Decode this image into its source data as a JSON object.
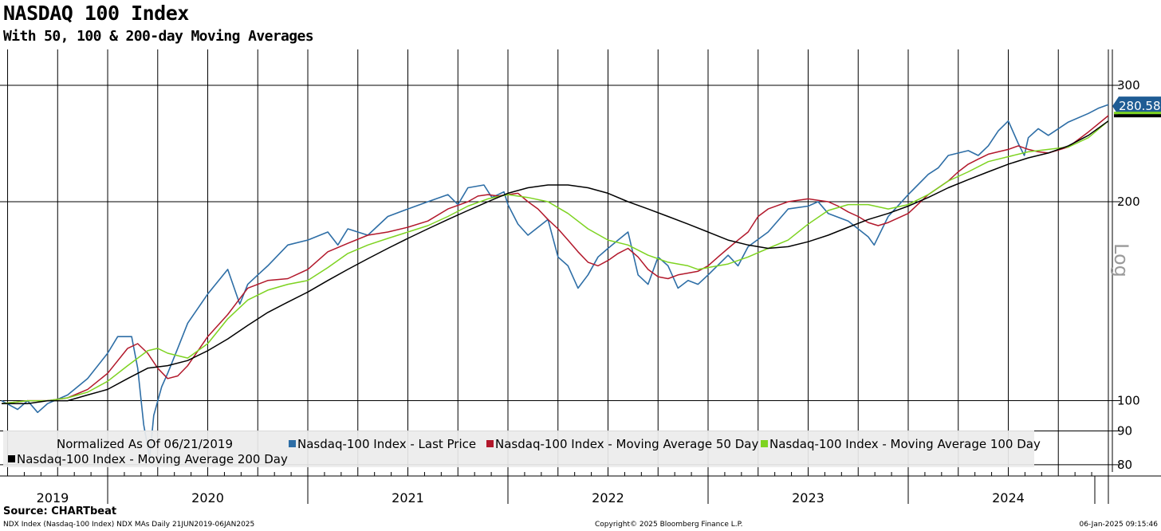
{
  "title": "NASDAQ 100 Index",
  "subtitle": "With 50, 100 & 200-day Moving Averages",
  "source": "Source: CHARTbeat",
  "footer": {
    "left": "NDX Index (Nasdaq-100 Index) NDX MAs  Daily 21JUN2019-06JAN2025",
    "center": "Copyright© 2025 Bloomberg Finance L.P.",
    "right": "06-Jan-2025 09:15:46"
  },
  "legend": {
    "normalized": "Normalized As Of 06/21/2019",
    "items": [
      {
        "label": "Nasdaq-100 Index - Last Price",
        "color": "#2e6ea6"
      },
      {
        "label": "Nasdaq-100 Index - Moving Average 50 Day",
        "color": "#b2182b"
      },
      {
        "label": "Nasdaq-100 Index - Moving Average 100 Day",
        "color": "#7ed321"
      },
      {
        "label": "Nasdaq-100 Index - Moving Average 200 Day",
        "color": "#000000"
      }
    ]
  },
  "axis": {
    "scale_label": "Log",
    "last_value_label": "280.58"
  },
  "chart_data": {
    "type": "line",
    "y_scale": "log",
    "ylim": [
      78,
      340
    ],
    "y_ticks": [
      80,
      90,
      100,
      200,
      300
    ],
    "xlim": [
      2019.47,
      2025.02
    ],
    "x_tick_labels": [
      "2019",
      "2020",
      "2021",
      "2022",
      "2023",
      "2024"
    ],
    "x_label_positions": [
      2019.22,
      2020.5,
      2021.5,
      2022.5,
      2023.5,
      2024.5
    ],
    "grid": true,
    "legend_position": "bottom",
    "last_value": 280.58,
    "series": [
      {
        "name": "Nasdaq-100 Index - Last Price",
        "color": "#2e6ea6",
        "x": [
          2019.47,
          2019.55,
          2019.6,
          2019.65,
          2019.7,
          2019.8,
          2019.9,
          2020.0,
          2020.05,
          2020.12,
          2020.15,
          2020.18,
          2020.21,
          2020.23,
          2020.27,
          2020.3,
          2020.35,
          2020.4,
          2020.5,
          2020.6,
          2020.66,
          2020.7,
          2020.75,
          2020.8,
          2020.9,
          2021.0,
          2021.1,
          2021.15,
          2021.2,
          2021.3,
          2021.4,
          2021.5,
          2021.6,
          2021.7,
          2021.75,
          2021.8,
          2021.88,
          2021.92,
          2021.98,
          2022.0,
          2022.05,
          2022.1,
          2022.2,
          2022.25,
          2022.3,
          2022.35,
          2022.4,
          2022.45,
          2022.5,
          2022.55,
          2022.6,
          2022.65,
          2022.7,
          2022.75,
          2022.8,
          2022.85,
          2022.9,
          2022.95,
          2023.0,
          2023.1,
          2023.15,
          2023.2,
          2023.3,
          2023.4,
          2023.5,
          2023.55,
          2023.6,
          2023.7,
          2023.8,
          2023.83,
          2023.9,
          2024.0,
          2024.1,
          2024.15,
          2024.2,
          2024.3,
          2024.35,
          2024.4,
          2024.45,
          2024.5,
          2024.55,
          2024.58,
          2024.6,
          2024.65,
          2024.7,
          2024.8,
          2024.9,
          2024.95,
          2025.0
        ],
        "values": [
          100,
          97,
          100,
          96,
          99,
          102,
          108,
          118,
          125,
          125,
          112,
          92,
          82,
          95,
          105,
          110,
          120,
          131,
          145,
          158,
          140,
          150,
          155,
          160,
          172,
          175,
          180,
          172,
          182,
          178,
          190,
          195,
          200,
          205,
          198,
          210,
          212,
          203,
          207,
          198,
          185,
          178,
          188,
          165,
          160,
          148,
          155,
          165,
          170,
          175,
          180,
          155,
          150,
          165,
          160,
          148,
          152,
          150,
          155,
          166,
          160,
          171,
          180,
          195,
          197,
          200,
          192,
          187,
          177,
          172,
          190,
          205,
          220,
          225,
          235,
          239,
          235,
          243,
          256,
          265,
          245,
          235,
          250,
          258,
          252,
          264,
          272,
          277,
          280.58
        ]
      },
      {
        "name": "Nasdaq-100 Index - Moving Average 50 Day",
        "color": "#b2182b",
        "x": [
          2019.47,
          2019.6,
          2019.7,
          2019.8,
          2019.9,
          2020.0,
          2020.1,
          2020.15,
          2020.2,
          2020.25,
          2020.3,
          2020.35,
          2020.4,
          2020.5,
          2020.6,
          2020.7,
          2020.8,
          2020.9,
          2021.0,
          2021.1,
          2021.2,
          2021.3,
          2021.4,
          2021.5,
          2021.6,
          2021.7,
          2021.8,
          2021.85,
          2021.9,
          2021.95,
          2022.0,
          2022.05,
          2022.1,
          2022.15,
          2022.2,
          2022.25,
          2022.3,
          2022.35,
          2022.4,
          2022.45,
          2022.5,
          2022.55,
          2022.6,
          2022.65,
          2022.7,
          2022.75,
          2022.8,
          2022.85,
          2022.9,
          2022.95,
          2023.0,
          2023.05,
          2023.1,
          2023.15,
          2023.2,
          2023.25,
          2023.3,
          2023.4,
          2023.5,
          2023.55,
          2023.6,
          2023.65,
          2023.7,
          2023.75,
          2023.8,
          2023.85,
          2023.9,
          2024.0,
          2024.1,
          2024.2,
          2024.25,
          2024.3,
          2024.35,
          2024.4,
          2024.45,
          2024.5,
          2024.55,
          2024.6,
          2024.65,
          2024.7,
          2024.8,
          2024.9,
          2025.0
        ],
        "values": [
          99,
          100,
          100,
          101,
          104,
          110,
          120,
          122,
          118,
          112,
          108,
          109,
          113,
          125,
          135,
          148,
          152,
          153,
          158,
          168,
          173,
          178,
          180,
          183,
          187,
          195,
          200,
          204,
          205,
          204,
          205,
          206,
          200,
          195,
          188,
          182,
          175,
          168,
          162,
          160,
          163,
          167,
          170,
          165,
          158,
          154,
          153,
          155,
          156,
          157,
          160,
          165,
          170,
          175,
          180,
          190,
          195,
          200,
          202,
          201,
          200,
          197,
          193,
          190,
          186,
          184,
          186,
          192,
          205,
          215,
          222,
          228,
          232,
          236,
          238,
          240,
          243,
          240,
          238,
          237,
          242,
          255,
          270
        ]
      },
      {
        "name": "Nasdaq-100 Index - Moving Average 100 Day",
        "color": "#7ed321",
        "x": [
          2019.47,
          2019.6,
          2019.7,
          2019.8,
          2019.9,
          2020.0,
          2020.1,
          2020.2,
          2020.25,
          2020.3,
          2020.4,
          2020.5,
          2020.6,
          2020.7,
          2020.8,
          2020.9,
          2021.0,
          2021.1,
          2021.2,
          2021.3,
          2021.4,
          2021.5,
          2021.6,
          2021.7,
          2021.8,
          2021.9,
          2022.0,
          2022.1,
          2022.2,
          2022.3,
          2022.4,
          2022.5,
          2022.6,
          2022.65,
          2022.7,
          2022.75,
          2022.8,
          2022.85,
          2022.9,
          2022.95,
          2023.0,
          2023.1,
          2023.2,
          2023.3,
          2023.4,
          2023.5,
          2023.6,
          2023.7,
          2023.8,
          2023.9,
          2024.0,
          2024.1,
          2024.2,
          2024.3,
          2024.4,
          2024.5,
          2024.6,
          2024.7,
          2024.8,
          2024.9,
          2025.0
        ],
        "values": [
          99,
          100,
          100,
          101,
          103,
          107,
          113,
          119,
          120,
          118,
          116,
          122,
          133,
          142,
          147,
          150,
          152,
          159,
          167,
          172,
          176,
          180,
          184,
          190,
          197,
          202,
          205,
          203,
          200,
          192,
          182,
          175,
          172,
          169,
          166,
          164,
          162,
          161,
          160,
          158,
          159,
          161,
          165,
          170,
          175,
          185,
          194,
          198,
          198,
          195,
          198,
          205,
          215,
          222,
          230,
          234,
          238,
          240,
          242,
          250,
          265
        ]
      },
      {
        "name": "Nasdaq-100 Index - Moving Average 200 Day",
        "color": "#000000",
        "x": [
          2019.47,
          2019.6,
          2019.7,
          2019.8,
          2019.9,
          2020.0,
          2020.1,
          2020.2,
          2020.3,
          2020.4,
          2020.5,
          2020.6,
          2020.7,
          2020.8,
          2020.9,
          2021.0,
          2021.1,
          2021.2,
          2021.3,
          2021.4,
          2021.5,
          2021.6,
          2021.7,
          2021.8,
          2021.9,
          2022.0,
          2022.1,
          2022.2,
          2022.3,
          2022.4,
          2022.5,
          2022.6,
          2022.7,
          2022.8,
          2022.9,
          2023.0,
          2023.1,
          2023.2,
          2023.3,
          2023.4,
          2023.5,
          2023.6,
          2023.7,
          2023.8,
          2023.9,
          2024.0,
          2024.1,
          2024.2,
          2024.3,
          2024.4,
          2024.5,
          2024.6,
          2024.7,
          2024.8,
          2024.9,
          2025.0
        ],
        "values": [
          99,
          99,
          100,
          100,
          102,
          104,
          108,
          112,
          113,
          115,
          119,
          124,
          130,
          136,
          141,
          146,
          152,
          158,
          164,
          170,
          176,
          182,
          188,
          194,
          200,
          206,
          210,
          212,
          212,
          210,
          206,
          200,
          195,
          190,
          185,
          180,
          175,
          172,
          170,
          171,
          174,
          178,
          183,
          188,
          192,
          197,
          203,
          210,
          216,
          222,
          228,
          233,
          237,
          243,
          252,
          265
        ]
      }
    ]
  }
}
